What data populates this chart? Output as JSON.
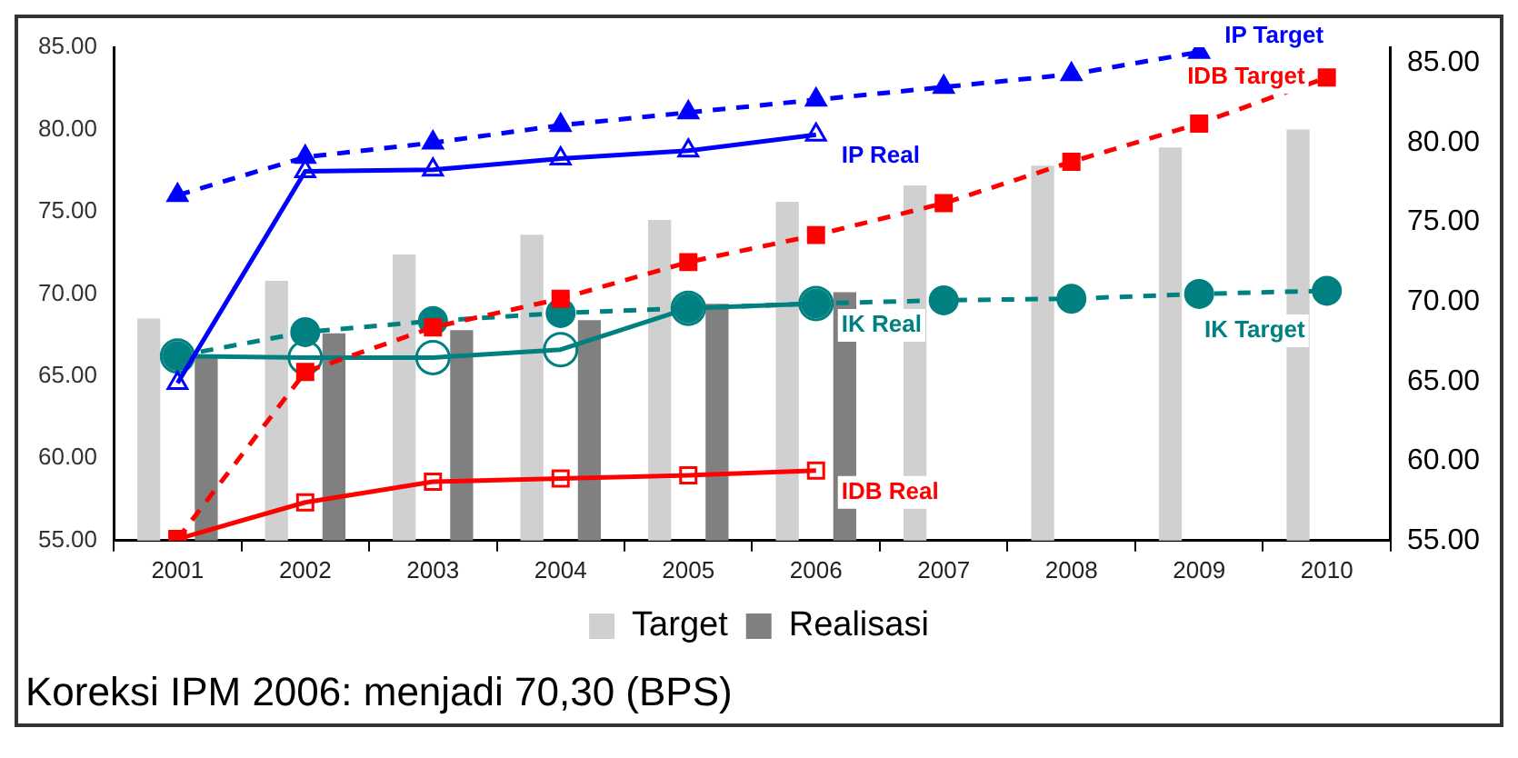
{
  "chart_data": {
    "type": "bar",
    "categories": [
      "2001",
      "2002",
      "2003",
      "2004",
      "2005",
      "2006",
      "2007",
      "2008",
      "2009",
      "2010"
    ],
    "series": [
      {
        "name": "Target",
        "color": "#d0d0d0",
        "values": [
          68.5,
          70.8,
          72.4,
          73.6,
          74.5,
          75.6,
          76.6,
          77.8,
          78.9,
          80.0
        ]
      },
      {
        "name": "Realisasi",
        "color": "#808080",
        "values": [
          66.2,
          67.6,
          67.8,
          68.4,
          69.4,
          70.1,
          null,
          null,
          null,
          null
        ]
      },
      {
        "name": "IP Target",
        "type": "line",
        "axis": "y2",
        "color": "#0000ff",
        "line_style": "dashed",
        "marker": "triangle",
        "values": [
          76.7,
          79.1,
          80.0,
          81.1,
          81.9,
          82.7,
          83.5,
          84.3,
          85.7,
          null
        ]
      },
      {
        "name": "IP Real",
        "type": "line",
        "axis": "y2",
        "color": "#0000ff",
        "line_style": "solid",
        "marker": "triangle",
        "values": [
          64.9,
          78.2,
          78.3,
          79.0,
          79.5,
          80.5,
          null,
          null,
          null,
          null
        ]
      },
      {
        "name": "IDB Target",
        "type": "line",
        "axis": "y2",
        "color": "#ff0000",
        "line_style": "dashed",
        "marker": "square",
        "values": [
          55.1,
          65.6,
          68.4,
          70.2,
          72.5,
          74.2,
          76.2,
          78.8,
          81.2,
          84.1
        ]
      },
      {
        "name": "IDB Real",
        "type": "line",
        "axis": "y2",
        "color": "#ff0000",
        "line_style": "solid",
        "marker": "square",
        "values": [
          55.1,
          57.4,
          58.7,
          58.9,
          59.1,
          59.4,
          null,
          null,
          null,
          null
        ]
      },
      {
        "name": "IK Target",
        "type": "line",
        "axis": "y2",
        "color": "#008080",
        "line_style": "dashed",
        "marker": "circle",
        "values": [
          66.6,
          68.1,
          68.8,
          69.3,
          69.6,
          69.9,
          70.1,
          70.2,
          70.5,
          70.7
        ]
      },
      {
        "name": "IK Real",
        "type": "line",
        "axis": "y2",
        "color": "#008080",
        "line_style": "solid",
        "marker": "circle",
        "values": [
          66.6,
          66.5,
          66.5,
          67.0,
          69.6,
          69.9,
          null,
          null,
          null,
          null
        ]
      }
    ],
    "ylim": [
      55,
      85
    ],
    "yticks": [
      {
        "value": 55,
        "label": "55.00"
      },
      {
        "value": 60,
        "label": "60.00"
      },
      {
        "value": 65,
        "label": "65.00"
      },
      {
        "value": 70,
        "label": "70.00"
      },
      {
        "value": 75,
        "label": "75.00"
      },
      {
        "value": 80,
        "label": "80.00"
      },
      {
        "value": 85,
        "label": "85.00"
      }
    ],
    "y2lim": [
      55,
      86
    ],
    "y2ticks": [
      {
        "value": 55,
        "label": "55.00"
      },
      {
        "value": 60,
        "label": "60.00"
      },
      {
        "value": 65,
        "label": "65.00"
      },
      {
        "value": 70,
        "label": "70.00"
      },
      {
        "value": 75,
        "label": "75.00"
      },
      {
        "value": 80,
        "label": "80.00"
      },
      {
        "value": 85,
        "label": "85.00"
      }
    ],
    "grid": false,
    "legend": "bottom",
    "annotations": [
      "Koreksi IPM 2006: menjadi 70,30 (BPS)"
    ]
  }
}
